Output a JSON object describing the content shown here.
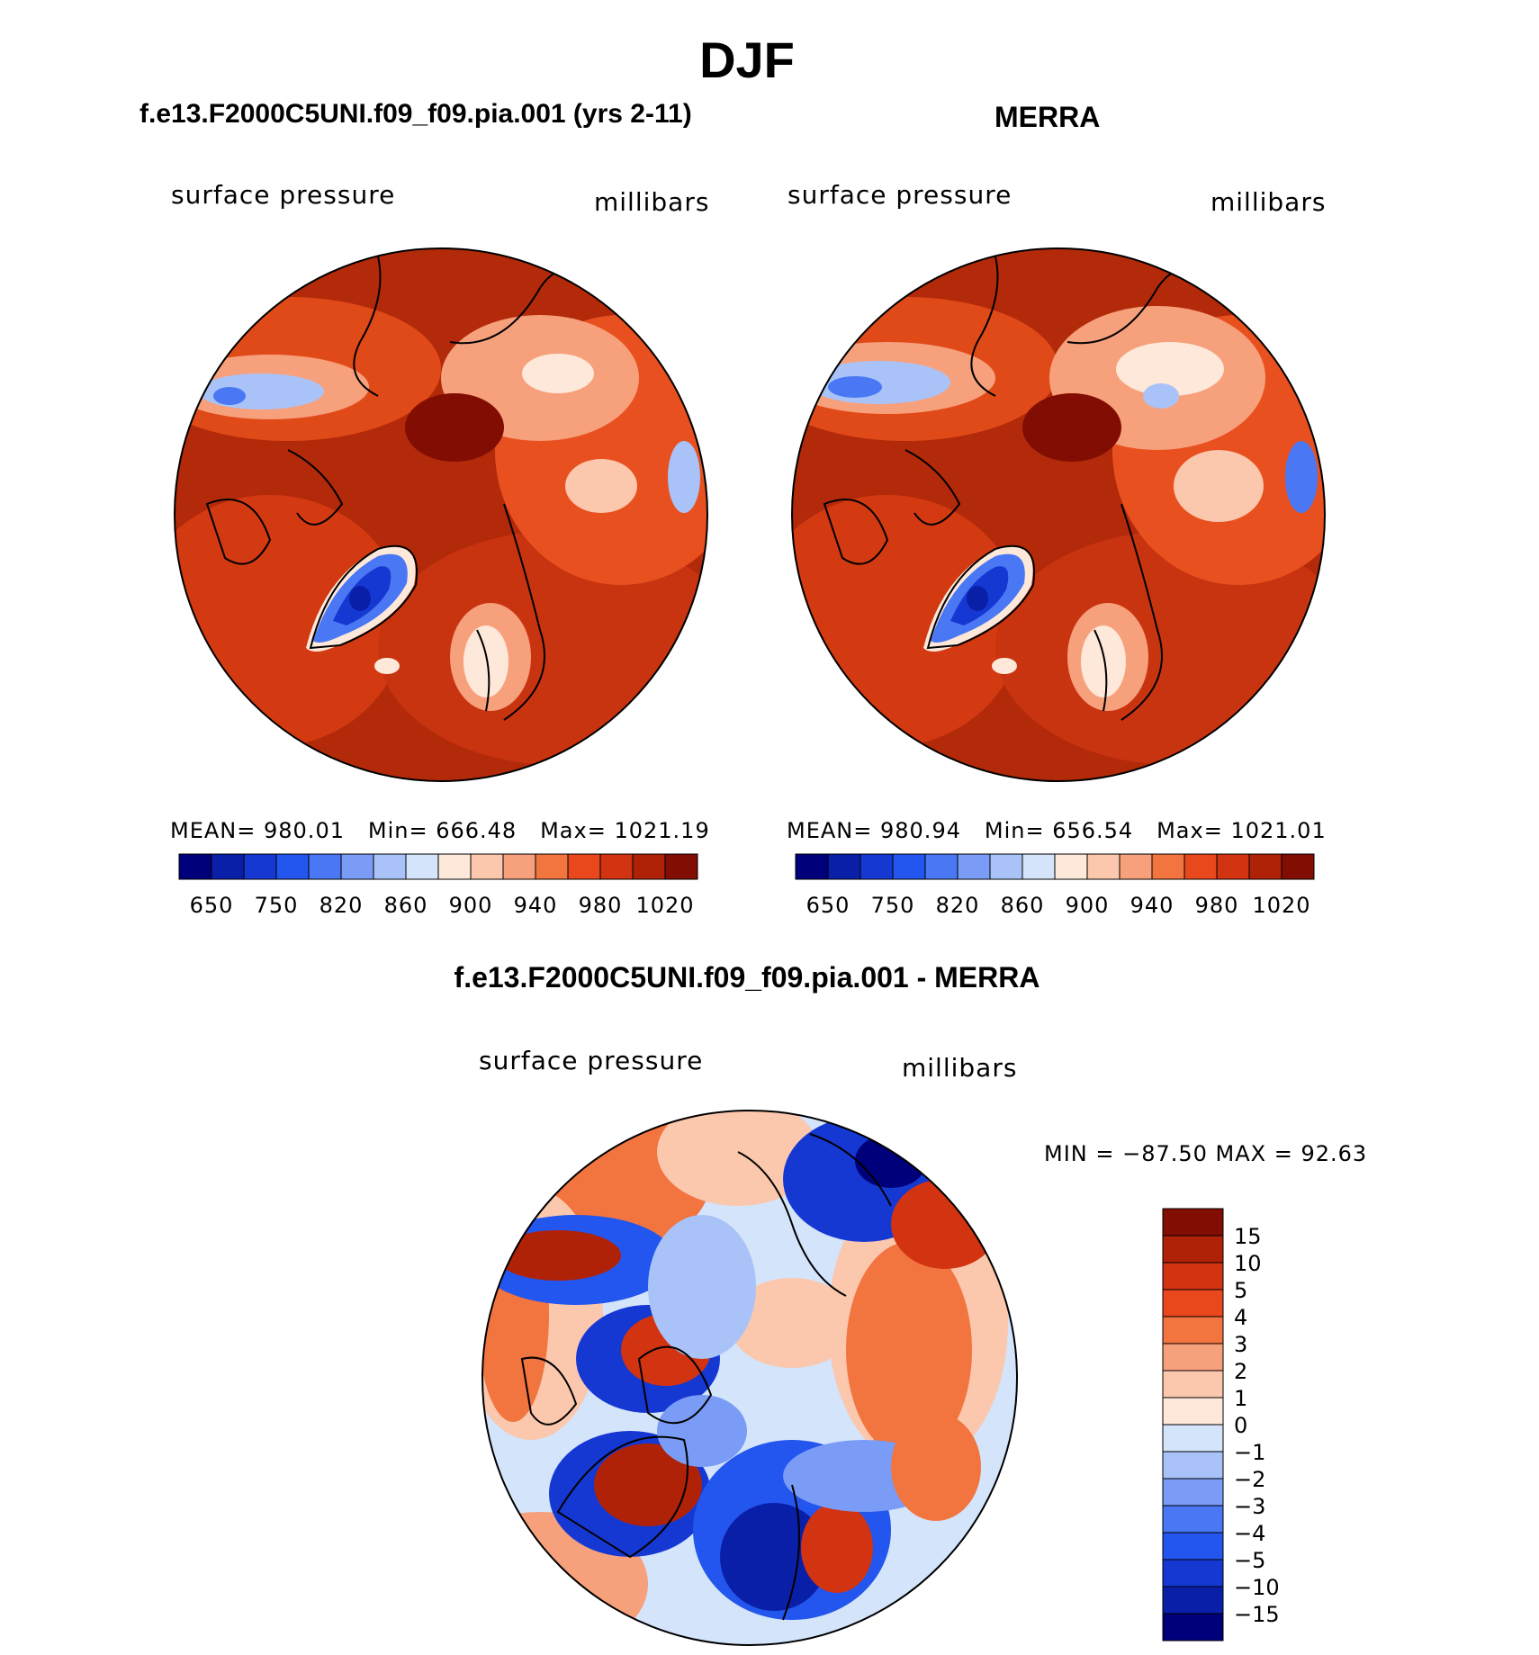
{
  "title": "DJF",
  "panels": [
    {
      "title": "f.e13.F2000C5UNI.f09_f09.pia.001 (yrs 2-11)",
      "variable": "surface pressure",
      "units": "millibars",
      "stats": {
        "mean_label": "MEAN=",
        "mean": "980.01",
        "min_label": "Min=",
        "min": "666.48",
        "max_label": "Max=",
        "max": "1021.19"
      }
    },
    {
      "title": "MERRA",
      "variable": "surface pressure",
      "units": "millibars",
      "stats": {
        "mean_label": "MEAN=",
        "mean": "980.94",
        "min_label": "Min=",
        "min": "656.54",
        "max_label": "Max=",
        "max": "1021.01"
      }
    }
  ],
  "difference": {
    "title": "f.e13.F2000C5UNI.f09_f09.pia.001 - MERRA",
    "variable": "surface pressure",
    "units": "millibars",
    "minmax": "MIN = −87.50 MAX =   92.63"
  },
  "chart_data": [
    {
      "type": "heatmap",
      "projection": "north-polar-stereographic",
      "title": "f.e13.F2000C5UNI.f09_f09.pia.001 (yrs 2-11)",
      "variable": "surface pressure",
      "units": "millibars",
      "mean": 980.01,
      "min": 666.48,
      "max": 1021.19,
      "colorbar": {
        "orientation": "horizontal",
        "tick_labels": [
          "650",
          "750",
          "820",
          "860",
          "900",
          "940",
          "980",
          "1020"
        ],
        "colors": [
          "#00007a",
          "#0a1fa8",
          "#1538d2",
          "#2356ee",
          "#4a78f4",
          "#7a9cf6",
          "#a9c3f8",
          "#d4e4fb",
          "#fde8da",
          "#fbc7ad",
          "#f7a07c",
          "#f2743f",
          "#e8481c",
          "#d23310",
          "#b02208",
          "#820d03"
        ]
      }
    },
    {
      "type": "heatmap",
      "projection": "north-polar-stereographic",
      "title": "MERRA",
      "variable": "surface pressure",
      "units": "millibars",
      "mean": 980.94,
      "min": 656.54,
      "max": 1021.01,
      "colorbar": {
        "orientation": "horizontal",
        "tick_labels": [
          "650",
          "750",
          "820",
          "860",
          "900",
          "940",
          "980",
          "1020"
        ],
        "colors": [
          "#00007a",
          "#0a1fa8",
          "#1538d2",
          "#2356ee",
          "#4a78f4",
          "#7a9cf6",
          "#a9c3f8",
          "#d4e4fb",
          "#fde8da",
          "#fbc7ad",
          "#f7a07c",
          "#f2743f",
          "#e8481c",
          "#d23310",
          "#b02208",
          "#820d03"
        ]
      }
    },
    {
      "type": "heatmap",
      "projection": "north-polar-stereographic",
      "title": "f.e13.F2000C5UNI.f09_f09.pia.001 - MERRA",
      "variable": "surface pressure",
      "units": "millibars",
      "min": -87.5,
      "max": 92.63,
      "colorbar": {
        "orientation": "vertical",
        "tick_labels": [
          "15",
          "10",
          "5",
          "4",
          "3",
          "2",
          "1",
          "0",
          "−1",
          "−2",
          "−3",
          "−4",
          "−5",
          "−10",
          "−15"
        ],
        "colors": [
          "#820d03",
          "#b02208",
          "#d23310",
          "#e8481c",
          "#f2743f",
          "#f7a07c",
          "#fbc7ad",
          "#fde8da",
          "#d4e4fb",
          "#a9c3f8",
          "#7a9cf6",
          "#4a78f4",
          "#2356ee",
          "#1538d2",
          "#0a1fa8",
          "#00007a"
        ]
      }
    }
  ]
}
